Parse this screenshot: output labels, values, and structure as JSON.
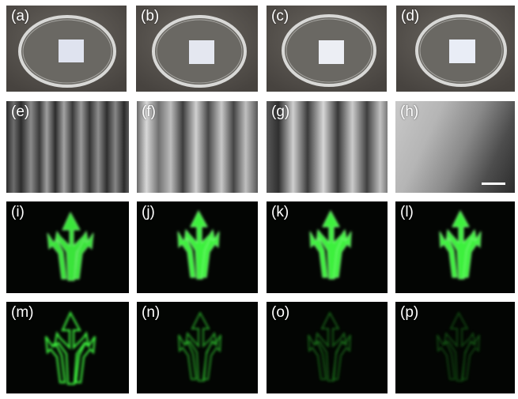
{
  "figure": {
    "panels": [
      {
        "label": "(a)",
        "row": 1
      },
      {
        "label": "(b)",
        "row": 1
      },
      {
        "label": "(c)",
        "row": 1
      },
      {
        "label": "(d)",
        "row": 1
      },
      {
        "label": "(e)",
        "row": 2
      },
      {
        "label": "(f)",
        "row": 2
      },
      {
        "label": "(g)",
        "row": 2
      },
      {
        "label": "(h)",
        "row": 2
      },
      {
        "label": "(i)",
        "row": 3
      },
      {
        "label": "(j)",
        "row": 3
      },
      {
        "label": "(k)",
        "row": 3
      },
      {
        "label": "(l)",
        "row": 3
      },
      {
        "label": "(m)",
        "row": 4
      },
      {
        "label": "(n)",
        "row": 4
      },
      {
        "label": "(o)",
        "row": 4
      },
      {
        "label": "(p)",
        "row": 4
      }
    ],
    "colors": {
      "glow_green": "#3cf23c",
      "dark_bg": "#020402",
      "desk_gray": "#5e5a55",
      "sample_white": "#e9ecf4"
    }
  }
}
